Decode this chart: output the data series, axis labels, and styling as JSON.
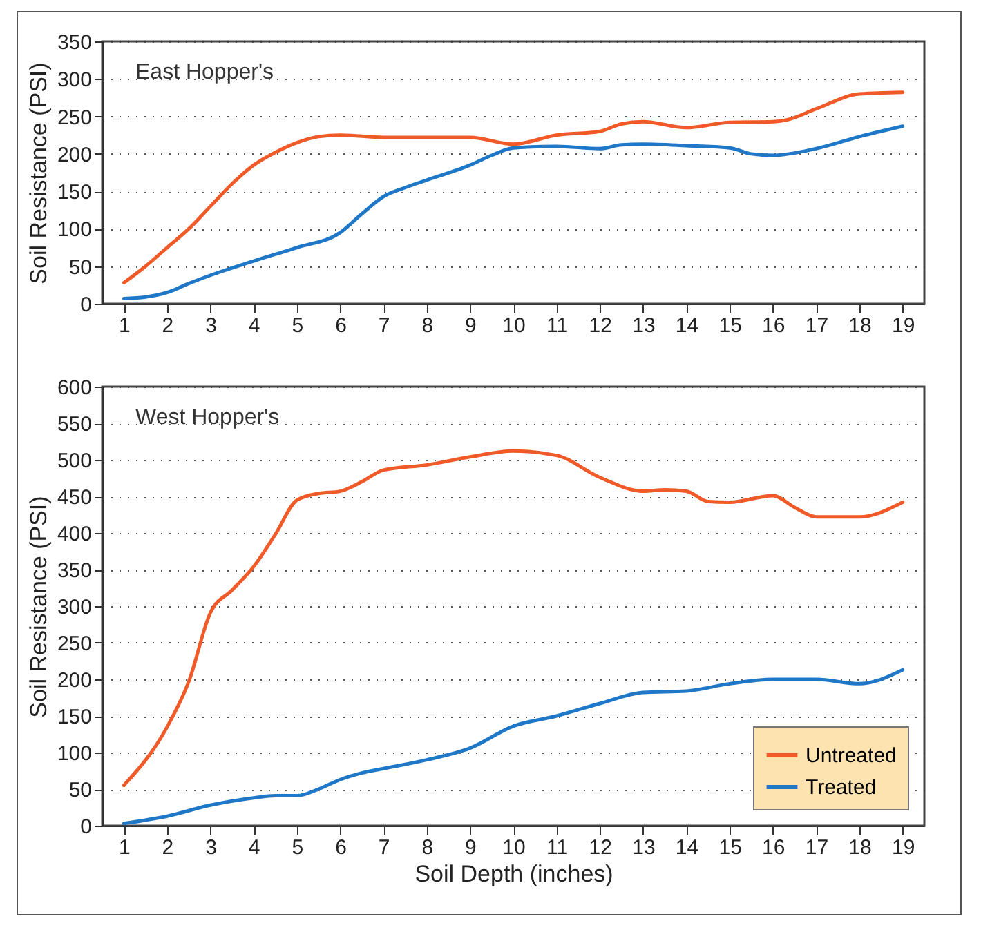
{
  "chart_data": [
    {
      "type": "line",
      "annotations": [
        "East Hopper's"
      ],
      "ylabel": "Soil Resistance (PSI)",
      "xlim": [
        0.5,
        19.5
      ],
      "xticks": [
        1,
        2,
        3,
        4,
        5,
        6,
        7,
        8,
        9,
        10,
        11,
        12,
        13,
        14,
        15,
        16,
        17,
        18,
        19
      ],
      "ylim": [
        0,
        350
      ],
      "yticks": [
        0,
        50,
        100,
        150,
        200,
        250,
        300,
        350
      ],
      "grid": "y",
      "line_style": "solid",
      "series": [
        {
          "color": "#f05a28",
          "x": [
            1,
            1.5,
            2,
            2.5,
            3,
            3.5,
            4,
            4.5,
            5,
            5.5,
            6,
            7,
            8,
            9,
            10,
            11,
            12,
            12.5,
            13,
            14,
            15,
            16,
            16.3,
            17,
            18,
            19
          ],
          "values": [
            28,
            50,
            75,
            100,
            130,
            160,
            185,
            202,
            215,
            223,
            225,
            222,
            222,
            222,
            213,
            225,
            230,
            240,
            243,
            235,
            242,
            243,
            245,
            260,
            280,
            282
          ]
        },
        {
          "color": "#1f77c8",
          "x": [
            1,
            1.5,
            2,
            2.5,
            3,
            4,
            5,
            6,
            6.5,
            7,
            7.5,
            8,
            9,
            9.5,
            10,
            11,
            12,
            12.5,
            13,
            14,
            15,
            15.5,
            16,
            17,
            18,
            19
          ],
          "values": [
            7,
            9,
            15,
            27,
            38,
            57,
            75,
            95,
            120,
            143,
            155,
            165,
            185,
            198,
            208,
            210,
            207,
            212,
            213,
            211,
            208,
            200,
            198,
            207,
            223,
            237
          ]
        }
      ]
    },
    {
      "type": "line",
      "annotations": [
        "West Hopper's"
      ],
      "xlabel": "Soil Depth (inches)",
      "ylabel": "Soil Resistance (PSI)",
      "xlim": [
        0.5,
        19.5
      ],
      "xticks": [
        1,
        2,
        3,
        4,
        5,
        6,
        7,
        8,
        9,
        10,
        11,
        12,
        13,
        14,
        15,
        16,
        17,
        18,
        19
      ],
      "ylim": [
        0,
        600
      ],
      "yticks": [
        0,
        50,
        100,
        150,
        200,
        250,
        300,
        350,
        400,
        450,
        500,
        550,
        600
      ],
      "grid": "y",
      "line_style": "solid",
      "legend": "bottom right",
      "series": [
        {
          "name": "Untreated",
          "color": "#f05a28",
          "x": [
            1,
            2,
            2.5,
            3,
            3.5,
            4,
            4.5,
            5,
            5.5,
            6,
            6.5,
            7,
            8,
            9,
            10,
            11,
            12,
            13,
            13.5,
            14,
            14.5,
            15,
            16,
            16.5,
            17,
            18,
            19
          ],
          "values": [
            55,
            135,
            197,
            291,
            322,
            354,
            398,
            445,
            454,
            457,
            470,
            486,
            493,
            504,
            512,
            506,
            476,
            457,
            459,
            457,
            443,
            442,
            451,
            435,
            422,
            422,
            442
          ]
        },
        {
          "name": "Treated",
          "color": "#1f77c8",
          "x": [
            1,
            2,
            3,
            4,
            4.5,
            5,
            5.5,
            6,
            6.5,
            7,
            8,
            9,
            10,
            11,
            12,
            13,
            14,
            15,
            16,
            17,
            18,
            19
          ],
          "values": [
            3,
            13,
            28,
            38,
            41,
            41,
            50,
            63,
            72,
            78,
            90,
            106,
            136,
            150,
            167,
            182,
            184,
            194,
            200,
            200,
            194,
            213
          ]
        }
      ]
    }
  ]
}
